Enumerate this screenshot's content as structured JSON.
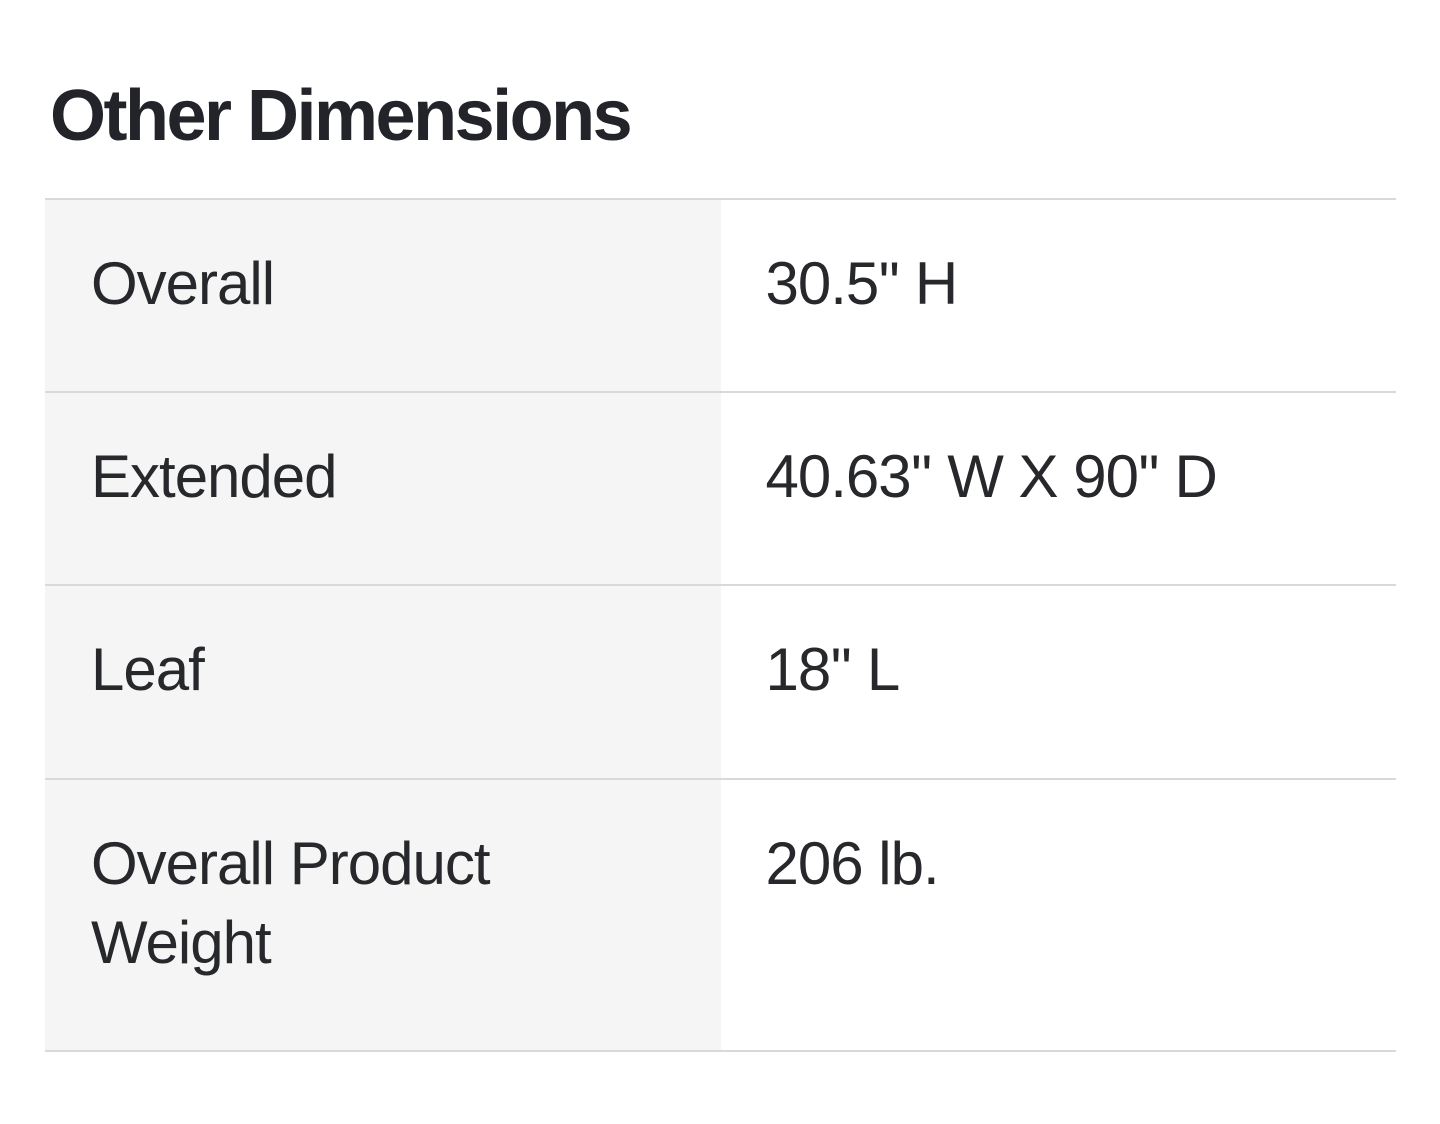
{
  "section": {
    "title": "Other Dimensions"
  },
  "table": {
    "rows": [
      {
        "label": "Overall",
        "value": "30.5'' H"
      },
      {
        "label": "Extended",
        "value": "40.63'' W X 90'' D"
      },
      {
        "label": "Leaf",
        "value": "18'' L"
      },
      {
        "label": "Overall Product Weight",
        "value": "206 lb."
      }
    ]
  },
  "colors": {
    "text": "#26282b",
    "label_cell_background": "#f5f5f5",
    "value_cell_background": "#ffffff",
    "divider": "#d9d9d9"
  }
}
